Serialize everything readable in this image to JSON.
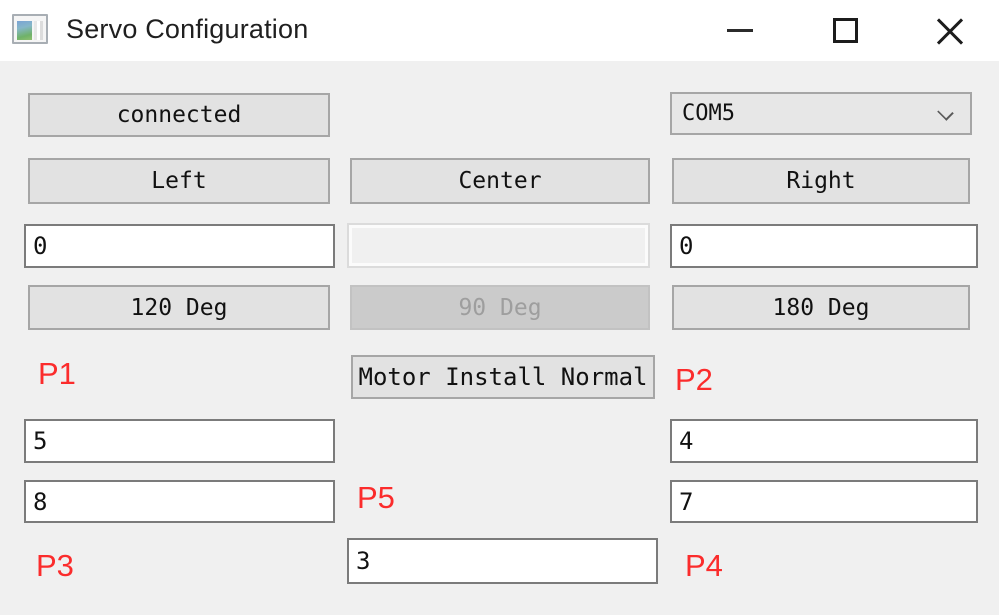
{
  "window": {
    "title": "Servo Configuration"
  },
  "icons": {
    "minimize": "minimize-icon",
    "maximize": "maximize-icon",
    "close": "close-icon",
    "combo_chevron": "chevron-down-icon"
  },
  "colors": {
    "body_bg": "#f0f0f0",
    "titlebar_bg": "#ffffff",
    "button_bg": "#e2e2e2",
    "button_border": "#a6a6a6",
    "disabled_button_bg": "#cbcbcb",
    "input_border": "#7b7b7b",
    "label_red": "#fb2c2c"
  },
  "connection": {
    "status_button": "connected",
    "com_port": "COM5"
  },
  "servo": {
    "position_buttons": {
      "left": "Left",
      "center": "Center",
      "right": "Right"
    },
    "angle_fields": {
      "left_value": "0",
      "center_value": "",
      "right_value": "0"
    },
    "degree_buttons": {
      "left": "120 Deg",
      "center": "90 Deg",
      "right": "180 Deg"
    },
    "motor_install_button": "Motor Install Normal"
  },
  "params": {
    "p1": {
      "label": "P1",
      "value": "5"
    },
    "p2": {
      "label": "P2",
      "value": "4"
    },
    "p3": {
      "label": "P3",
      "value": "8"
    },
    "p4": {
      "label": "P4",
      "value": "7"
    },
    "p5": {
      "label": "P5",
      "value": "3"
    }
  }
}
